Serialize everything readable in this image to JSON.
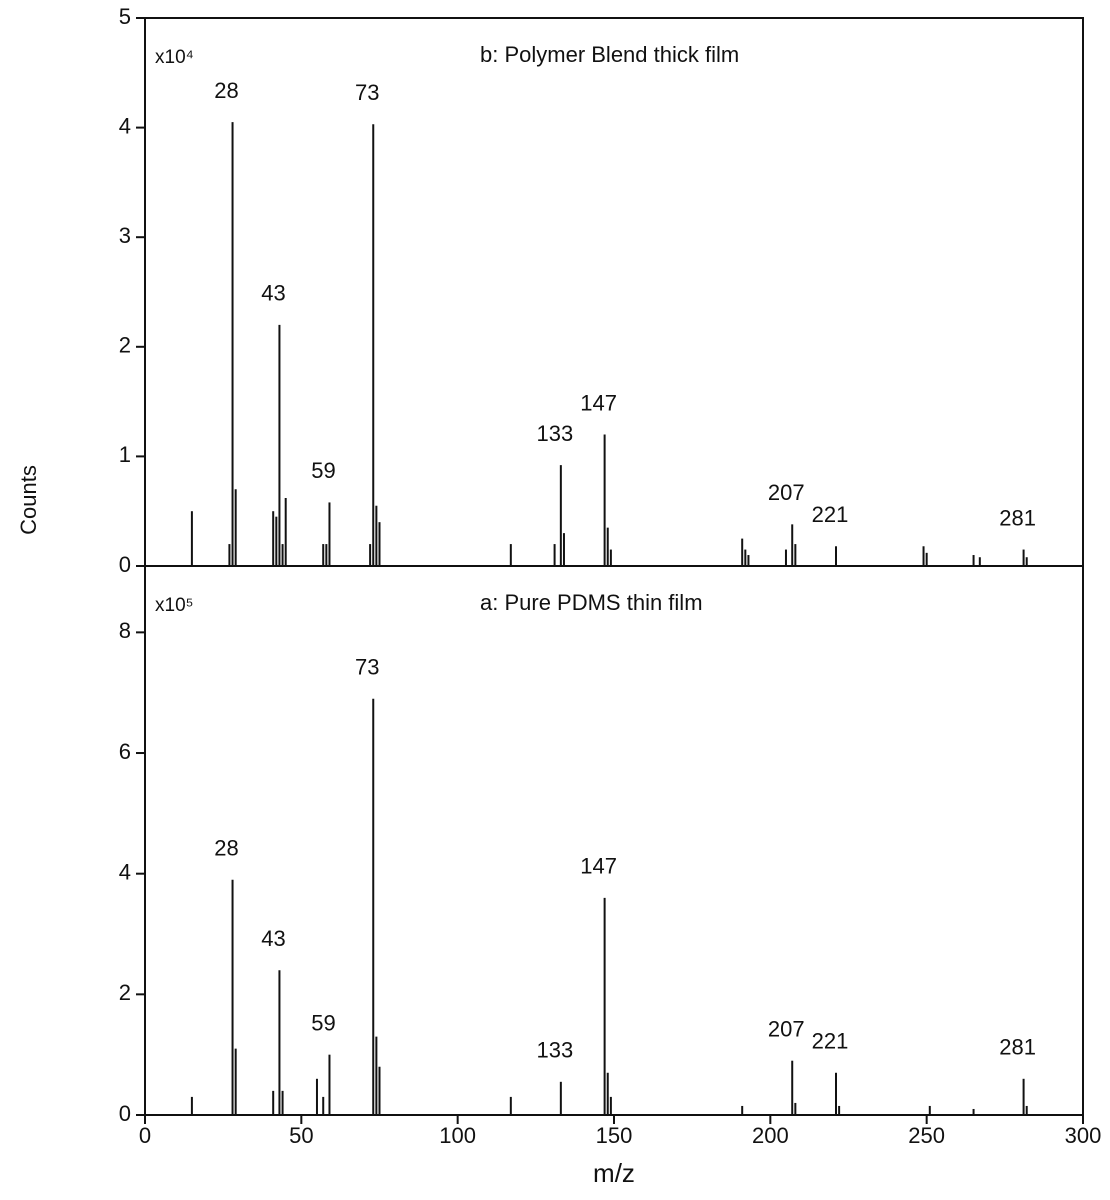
{
  "chart_data": [
    {
      "type": "stem",
      "title": "b: Polymer Blend thick film",
      "scale_label": "x10⁴",
      "ylabel": "Counts",
      "x": [
        15,
        27,
        28,
        29,
        41,
        42,
        43,
        44,
        45,
        57,
        58,
        59,
        72,
        73,
        74,
        75,
        117,
        131,
        133,
        134,
        147,
        148,
        149,
        191,
        192,
        193,
        205,
        207,
        208,
        221,
        249,
        250,
        265,
        267,
        281,
        282
      ],
      "values": [
        0.5,
        0.2,
        4.05,
        0.7,
        0.5,
        0.45,
        2.2,
        0.2,
        0.62,
        0.2,
        0.2,
        0.58,
        0.2,
        4.03,
        0.55,
        0.4,
        0.2,
        0.2,
        0.92,
        0.3,
        1.2,
        0.35,
        0.15,
        0.25,
        0.15,
        0.1,
        0.15,
        0.38,
        0.2,
        0.18,
        0.18,
        0.12,
        0.1,
        0.08,
        0.15,
        0.08
      ],
      "annotations": [
        "28",
        "43",
        "59",
        "73",
        "133",
        "147",
        "207",
        "221",
        "281"
      ],
      "ylim": [
        0,
        5
      ],
      "yticks": [
        0,
        1,
        2,
        3,
        4,
        5
      ],
      "color": "#111"
    },
    {
      "type": "stem",
      "title": "a: Pure PDMS thin film",
      "scale_label": "x10⁵",
      "xlabel": "m/z",
      "x": [
        15,
        28,
        29,
        41,
        43,
        44,
        55,
        57,
        59,
        73,
        74,
        75,
        117,
        133,
        147,
        148,
        149,
        191,
        207,
        208,
        221,
        222,
        251,
        265,
        281,
        282
      ],
      "values": [
        0.3,
        3.9,
        1.1,
        0.4,
        2.4,
        0.4,
        0.6,
        0.3,
        1.0,
        6.9,
        1.3,
        0.8,
        0.3,
        0.55,
        3.6,
        0.7,
        0.3,
        0.15,
        0.9,
        0.2,
        0.7,
        0.15,
        0.15,
        0.1,
        0.6,
        0.15
      ],
      "annotations": [
        "28",
        "43",
        "59",
        "73",
        "133",
        "147",
        "207",
        "221",
        "281"
      ],
      "xlim": [
        0,
        300
      ],
      "xticks": [
        0,
        50,
        100,
        150,
        200,
        250,
        300
      ],
      "ylim": [
        0,
        9.1
      ],
      "yticks": [
        0,
        2,
        4,
        6,
        8
      ],
      "color": "#111"
    }
  ]
}
